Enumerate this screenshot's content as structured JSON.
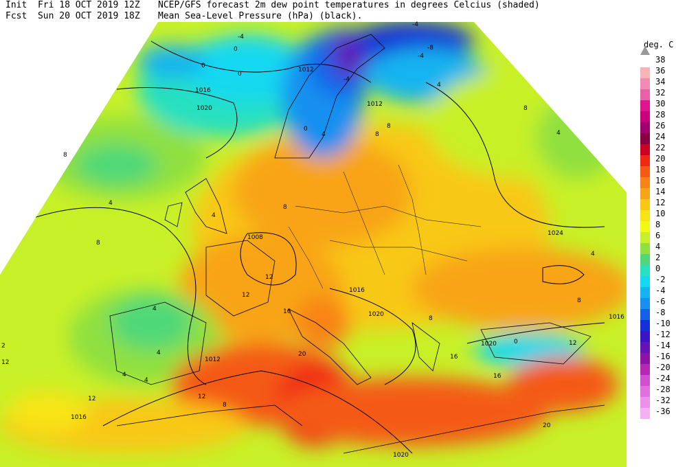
{
  "header": {
    "init_label": "Init",
    "init_time": "Fri 18 OCT 2019 12Z",
    "fcst_label": "Fcst",
    "fcst_time": "Sun 20 OCT 2019 18Z",
    "line1": "NCEP/GFS forecast 2m dew point temperatures in degrees Celcius (shaded)",
    "line2": "Mean Sea-Level Pressure (hPa) (black)."
  },
  "colorbar": {
    "unit": "deg. C",
    "levels": [
      {
        "label": "38",
        "color": ""
      },
      {
        "label": "36",
        "color": "#f8b4b4"
      },
      {
        "label": "34",
        "color": "#f08cb4"
      },
      {
        "label": "32",
        "color": "#e860a8"
      },
      {
        "label": "30",
        "color": "#e0148c"
      },
      {
        "label": "28",
        "color": "#c8007c"
      },
      {
        "label": "26",
        "color": "#a00070"
      },
      {
        "label": "24",
        "color": "#880040"
      },
      {
        "label": "22",
        "color": "#cc0020"
      },
      {
        "label": "20",
        "color": "#f02814"
      },
      {
        "label": "18",
        "color": "#f45a14"
      },
      {
        "label": "16",
        "color": "#f88418"
      },
      {
        "label": "14",
        "color": "#f8a418"
      },
      {
        "label": "12",
        "color": "#f8c814"
      },
      {
        "label": "10",
        "color": "#f8e414"
      },
      {
        "label": "8",
        "color": "#f0f814"
      },
      {
        "label": "6",
        "color": "#c8f028"
      },
      {
        "label": "4",
        "color": "#90e040"
      },
      {
        "label": "2",
        "color": "#50d878"
      },
      {
        "label": "0",
        "color": "#28e0c0"
      },
      {
        "label": "-2",
        "color": "#14d8f0"
      },
      {
        "label": "-4",
        "color": "#14b4f0"
      },
      {
        "label": "-6",
        "color": "#1890f0"
      },
      {
        "label": "-8",
        "color": "#1460e8"
      },
      {
        "label": "-10",
        "color": "#1430d8"
      },
      {
        "label": "-12",
        "color": "#3c14c8"
      },
      {
        "label": "-14",
        "color": "#6414b4"
      },
      {
        "label": "-16",
        "color": "#8c14a4"
      },
      {
        "label": "-20",
        "color": "#b428b4"
      },
      {
        "label": "-24",
        "color": "#d050d0"
      },
      {
        "label": "-28",
        "color": "#e070e0"
      },
      {
        "label": "-32",
        "color": "#ec90ec"
      },
      {
        "label": "-36",
        "color": "#f4b0f4"
      }
    ]
  },
  "pressure_labels": [
    "1012",
    "1012",
    "1016",
    "1020",
    "1008",
    "1016",
    "1020",
    "1012",
    "1024",
    "1016",
    "1020",
    "1016",
    "1020"
  ],
  "dewpoint_labels": [
    "-4",
    "0",
    "0",
    "0",
    "8",
    "4",
    "-4",
    "-8",
    "-4",
    "-4",
    "4",
    "8",
    "8",
    "0",
    "4",
    "8",
    "4",
    "4",
    "8",
    "4",
    "12",
    "8",
    "12",
    "4",
    "8",
    "2",
    "12",
    "4",
    "4",
    "20",
    "16",
    "12",
    "8",
    "16",
    "12",
    "8",
    "0",
    "16",
    "20",
    "12",
    "4"
  ]
}
